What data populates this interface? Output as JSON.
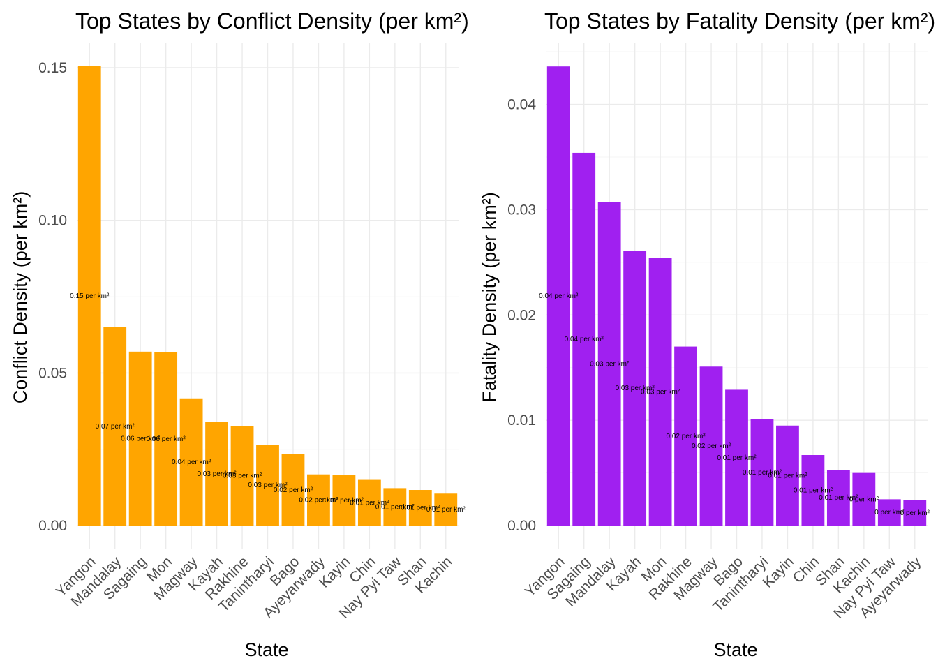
{
  "chart_data": [
    {
      "type": "bar",
      "title": "Top States by Conflict Density (per km²)",
      "xlabel": "State",
      "ylabel": "Conflict Density (per km²)",
      "categories": [
        "Yangon",
        "Mandalay",
        "Sagaing",
        "Mon",
        "Magway",
        "Kayah",
        "Rakhine",
        "Tanintharyi",
        "Bago",
        "Ayeyarwady",
        "Kayin",
        "Chin",
        "Nay Pyi Taw",
        "Shan",
        "Kachin"
      ],
      "values": [
        0.1505,
        0.065,
        0.057,
        0.0568,
        0.0417,
        0.034,
        0.0327,
        0.0265,
        0.0235,
        0.0168,
        0.0165,
        0.015,
        0.0123,
        0.0117,
        0.0105
      ],
      "data_labels": [
        "0.15 per km²",
        "0.07 per km²",
        "0.06 per km²",
        "0.06 per km²",
        "0.04 per km²",
        "0.03 per km²",
        "0.03 per km²",
        "0.03 per km²",
        "0.02 per km²",
        "0.02 per km²",
        "0.02 per km²",
        "0.01 per km²",
        "0.01 per km²",
        "0.01 per km²",
        "0.01 per km²"
      ],
      "yticks": [
        "0.00",
        "0.05",
        "0.10",
        "0.15"
      ],
      "ylim": [
        -0.0075,
        0.158
      ],
      "color": "#FFA500",
      "grid": true,
      "legend": "none"
    },
    {
      "type": "bar",
      "title": "Top States by Fatality Density (per km²)",
      "xlabel": "State",
      "ylabel": "Fatality Density (per km²)",
      "categories": [
        "Yangon",
        "Sagaing",
        "Mandalay",
        "Kayah",
        "Mon",
        "Rakhine",
        "Magway",
        "Bago",
        "Tanintharyi",
        "Kayin",
        "Chin",
        "Shan",
        "Kachin",
        "Nay Pyi Taw",
        "Ayeyarwady"
      ],
      "values": [
        0.0436,
        0.0354,
        0.0307,
        0.0261,
        0.0254,
        0.017,
        0.0151,
        0.0129,
        0.0101,
        0.0095,
        0.0067,
        0.0053,
        0.005,
        0.0025,
        0.0024
      ],
      "data_labels": [
        "0.04 per km²",
        "0.04 per km²",
        "0.03 per km²",
        "0.03 per km²",
        "0.03 per km²",
        "0.02 per km²",
        "0.02 per km²",
        "0.01 per km²",
        "0.01 per km²",
        "0.01 per km²",
        "0.01 per km²",
        "0.01 per km²",
        "0 per km²",
        "0 per km²",
        "0 per km²"
      ],
      "yticks": [
        "0.00",
        "0.01",
        "0.02",
        "0.03",
        "0.04"
      ],
      "ylim": [
        -0.00218,
        0.0458
      ],
      "color": "#A020F0",
      "grid": true,
      "legend": "none"
    }
  ]
}
